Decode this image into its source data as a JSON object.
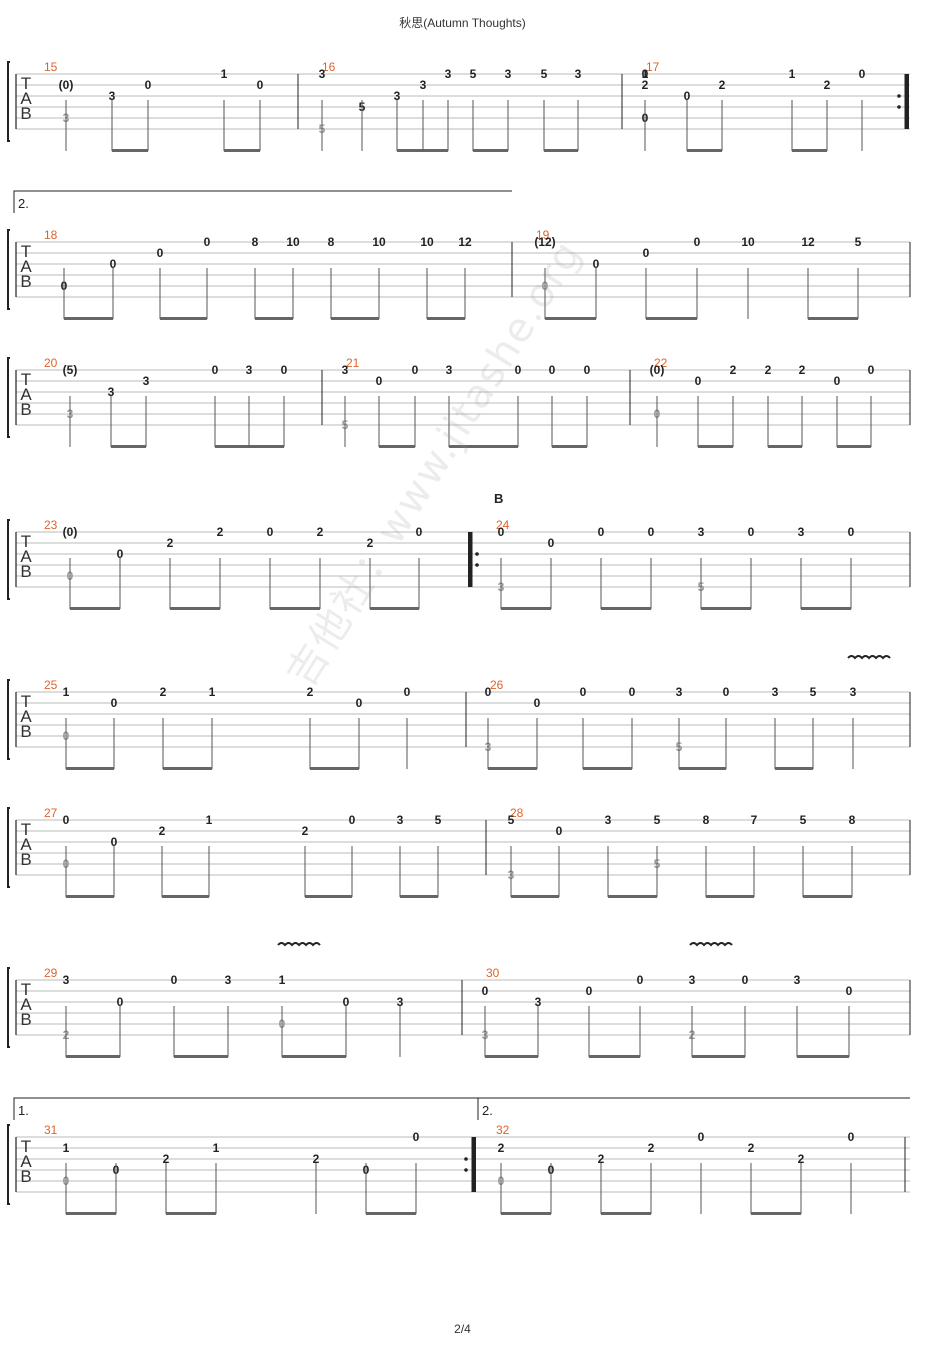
{
  "title": "秋思(Autumn Thoughts)",
  "page_number": "2/4",
  "watermark": "吉他社：www.jitashe.org",
  "section_label": "B",
  "colors": {
    "measure_number": "#e0622c",
    "ghost_fret": "#999999",
    "fret": "#222222",
    "staff_line": "#bbbbbb"
  },
  "tab_clef": [
    "T",
    "A",
    "B"
  ],
  "volta_labels": [
    "2.",
    "1.",
    "2."
  ],
  "systems": [
    {
      "measures": [
        {
          "number": "15",
          "notes": [
            [
              "(0)",
              "3"
            ],
            [
              "3"
            ],
            [
              "0"
            ],
            [
              "1"
            ],
            [
              "0"
            ]
          ]
        },
        {
          "number": "16",
          "notes": [
            [
              "3",
              "5"
            ],
            [
              "5"
            ],
            [
              "3"
            ],
            [
              "3"
            ],
            [
              "3"
            ],
            [
              "5"
            ],
            [
              "3"
            ],
            [
              "5"
            ],
            [
              "3"
            ]
          ]
        },
        {
          "number": "17",
          "notes": [
            [
              "0",
              "1",
              "2",
              "0"
            ],
            [
              "0"
            ],
            [
              "2"
            ],
            [
              "1"
            ],
            [
              "2"
            ],
            [
              "0"
            ]
          ]
        }
      ]
    },
    {
      "measures": [
        {
          "number": "18",
          "notes": [
            [
              "0"
            ],
            [
              "0"
            ],
            [
              "0"
            ],
            [
              "0"
            ],
            [
              "8"
            ],
            [
              "10"
            ],
            [
              "8"
            ],
            [
              "10"
            ],
            [
              "10"
            ],
            [
              "12"
            ]
          ]
        },
        {
          "number": "19",
          "notes": [
            [
              "(12)",
              "0"
            ],
            [
              "0"
            ],
            [
              "0"
            ],
            [
              "0"
            ],
            [
              "10"
            ],
            [
              "12"
            ],
            [
              "5"
            ]
          ]
        }
      ]
    },
    {
      "measures": [
        {
          "number": "20",
          "notes": [
            [
              "(5)",
              "3"
            ],
            [
              "3"
            ],
            [
              "3"
            ],
            [
              "0"
            ],
            [
              "3"
            ],
            [
              "0"
            ]
          ]
        },
        {
          "number": "21",
          "notes": [
            [
              "3",
              "5"
            ],
            [
              "0"
            ],
            [
              "0"
            ],
            [
              "3"
            ],
            [
              "0"
            ],
            [
              "0"
            ],
            [
              "0"
            ]
          ]
        },
        {
          "number": "22",
          "notes": [
            [
              "(0)",
              "0"
            ],
            [
              "0"
            ],
            [
              "2"
            ],
            [
              "2"
            ],
            [
              "2"
            ],
            [
              "0"
            ],
            [
              "0"
            ]
          ]
        }
      ]
    },
    {
      "measures": [
        {
          "number": "23",
          "notes": [
            [
              "(0)",
              "0"
            ],
            [
              "0"
            ],
            [
              "2"
            ],
            [
              "2"
            ],
            [
              "0"
            ],
            [
              "2"
            ],
            [
              "2"
            ],
            [
              "0"
            ]
          ]
        },
        {
          "number": "24",
          "notes": [
            [
              "0",
              "3"
            ],
            [
              "0"
            ],
            [
              "0"
            ],
            [
              "0"
            ],
            [
              "3",
              "5"
            ],
            [
              "0"
            ],
            [
              "3"
            ],
            [
              "0"
            ]
          ]
        }
      ]
    },
    {
      "measures": [
        {
          "number": "25",
          "notes": [
            [
              "1",
              "0"
            ],
            [
              "0"
            ],
            [
              "2"
            ],
            [
              "1"
            ],
            [
              "2"
            ],
            [
              "0"
            ],
            [
              "0"
            ]
          ]
        },
        {
          "number": "26",
          "notes": [
            [
              "0",
              "3"
            ],
            [
              "0"
            ],
            [
              "0"
            ],
            [
              "0"
            ],
            [
              "3",
              "5"
            ],
            [
              "0"
            ],
            [
              "3"
            ],
            [
              "5"
            ],
            [
              "3"
            ]
          ]
        }
      ]
    },
    {
      "measures": [
        {
          "number": "27",
          "notes": [
            [
              "0",
              "0"
            ],
            [
              "0"
            ],
            [
              "2"
            ],
            [
              "1"
            ],
            [
              "2"
            ],
            [
              "0"
            ],
            [
              "3"
            ],
            [
              "5"
            ]
          ]
        },
        {
          "number": "28",
          "notes": [
            [
              "5",
              "3"
            ],
            [
              "0"
            ],
            [
              "3"
            ],
            [
              "5",
              "5"
            ],
            [
              "8"
            ],
            [
              "7"
            ],
            [
              "5"
            ],
            [
              "8"
            ]
          ]
        }
      ]
    },
    {
      "measures": [
        {
          "number": "29",
          "notes": [
            [
              "3",
              "2"
            ],
            [
              "0"
            ],
            [
              "0"
            ],
            [
              "3"
            ],
            [
              "1",
              "0"
            ],
            [
              "0"
            ],
            [
              "3"
            ]
          ]
        },
        {
          "number": "30",
          "notes": [
            [
              "0",
              "3"
            ],
            [
              "3"
            ],
            [
              "0"
            ],
            [
              "0"
            ],
            [
              "3",
              "2"
            ],
            [
              "0"
            ],
            [
              "3"
            ],
            [
              "0"
            ]
          ]
        }
      ]
    },
    {
      "measures": [
        {
          "number": "31",
          "notes": [
            [
              "1",
              "0"
            ],
            [
              "0"
            ],
            [
              "2"
            ],
            [
              "1"
            ],
            [
              "2"
            ],
            [
              "0"
            ],
            [
              "0"
            ]
          ]
        },
        {
          "number": "32",
          "notes": [
            [
              "2",
              "0"
            ],
            [
              "0"
            ],
            [
              "2"
            ],
            [
              "2"
            ],
            [
              "0"
            ],
            [
              "2"
            ],
            [
              "2"
            ],
            [
              "0"
            ]
          ]
        }
      ]
    }
  ]
}
